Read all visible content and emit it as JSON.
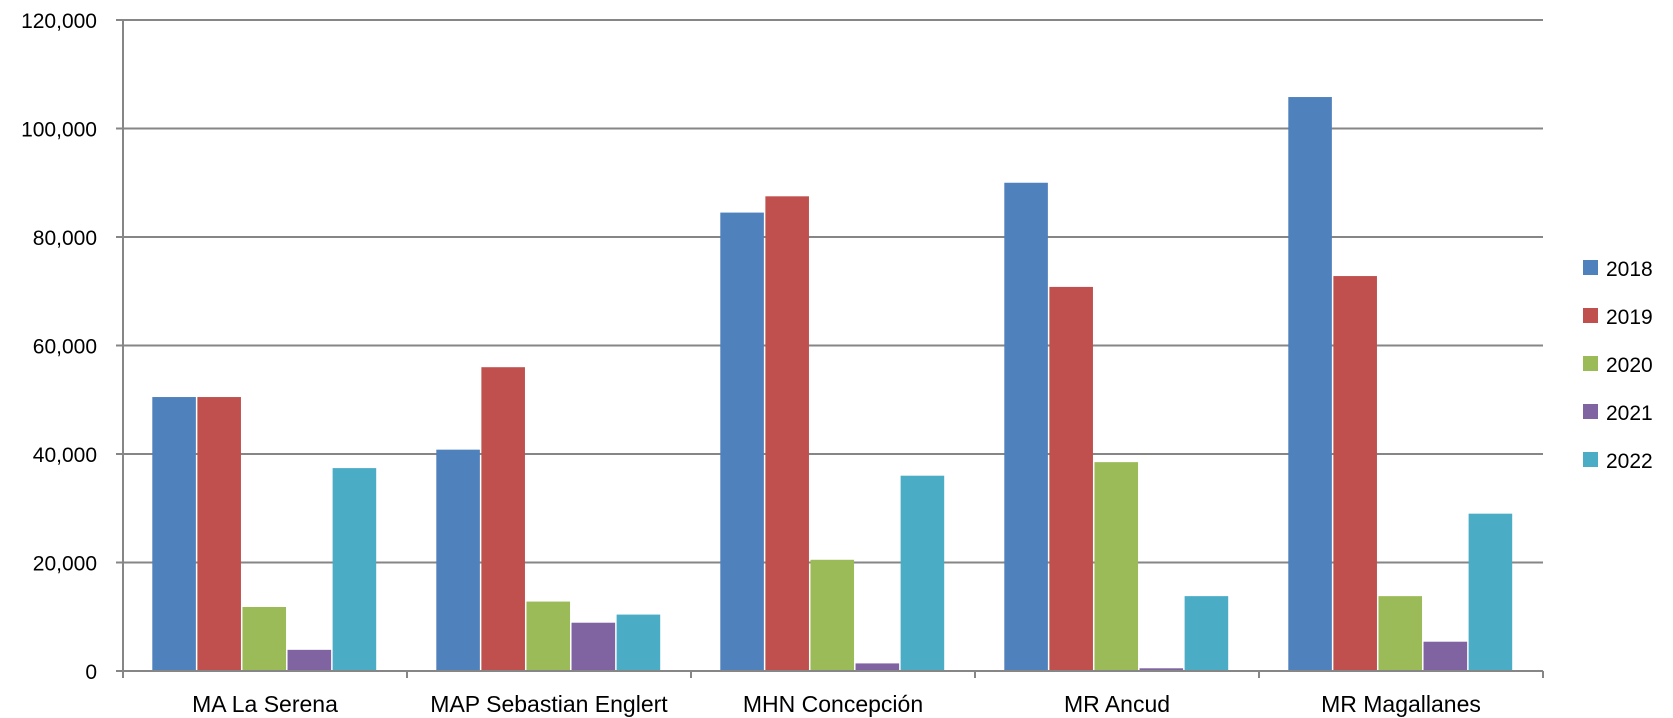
{
  "chart_data": {
    "type": "bar",
    "title": "",
    "xlabel": "",
    "ylabel": "",
    "categories": [
      "MA La Serena",
      "MAP Sebastian Englert",
      "MHN Concepción",
      "MR Ancud",
      "MR Magallanes"
    ],
    "series": [
      {
        "name": "2018",
        "color": "#4F81BD",
        "values": [
          50500,
          40800,
          84500,
          90000,
          105800
        ]
      },
      {
        "name": "2019",
        "color": "#C0504D",
        "values": [
          50500,
          56000,
          87500,
          70800,
          72800
        ]
      },
      {
        "name": "2020",
        "color": "#9BBB59",
        "values": [
          11800,
          12800,
          20500,
          38500,
          13800
        ]
      },
      {
        "name": "2021",
        "color": "#8064A2",
        "values": [
          3900,
          8900,
          1400,
          500,
          5400
        ]
      },
      {
        "name": "2022",
        "color": "#4BACC6",
        "values": [
          37400,
          10400,
          36000,
          13800,
          29000
        ]
      }
    ],
    "ylim": [
      0,
      120000
    ],
    "y_ticks": [
      0,
      20000,
      40000,
      60000,
      80000,
      100000,
      120000
    ],
    "y_tick_labels": [
      "0",
      "20,000",
      "40,000",
      "60,000",
      "80,000",
      "100,000",
      "120,000"
    ],
    "grid": true,
    "legend_position": "right"
  }
}
